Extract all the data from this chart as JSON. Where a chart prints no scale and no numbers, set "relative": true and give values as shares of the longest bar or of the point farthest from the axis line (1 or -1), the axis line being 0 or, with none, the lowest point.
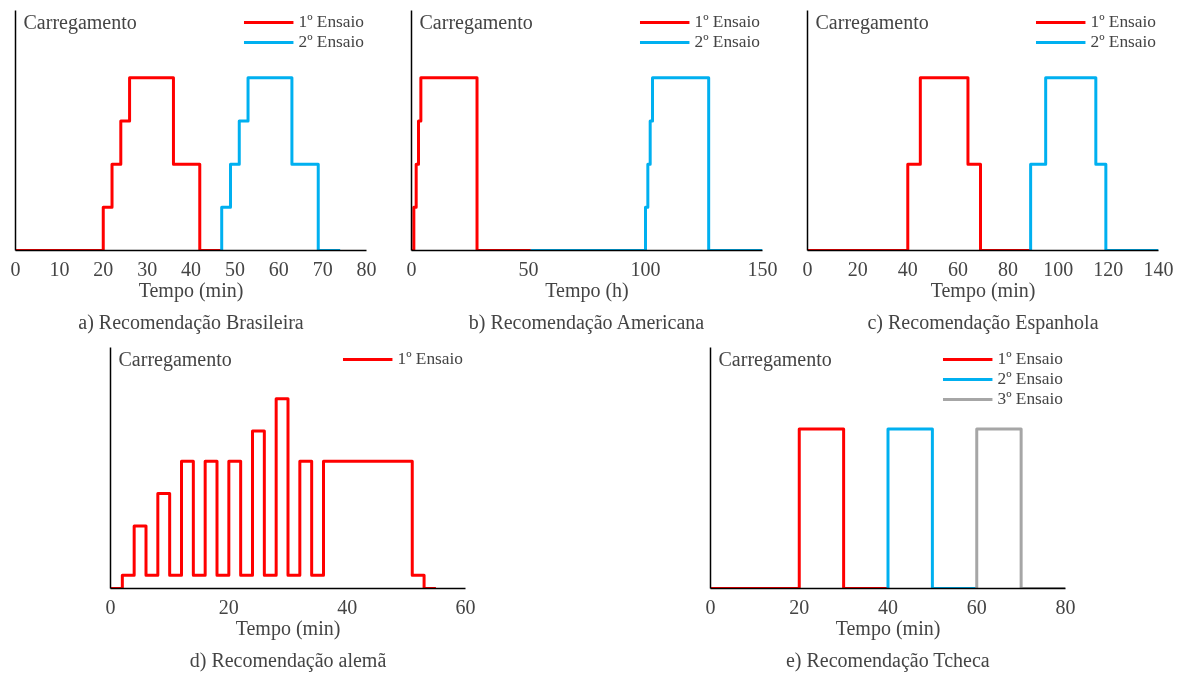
{
  "chart_data": [
    {
      "type": "step",
      "title": "a) Recomendação Brasileira",
      "xlabel": "Tempo (min)",
      "ylabel": "Carregamento",
      "relative": true,
      "tick_labels": "x",
      "legend": "top right",
      "line_style": "solid",
      "grid": false,
      "xlim": [
        0,
        80
      ],
      "xticks": [
        0,
        10,
        20,
        30,
        40,
        50,
        60,
        70,
        80
      ],
      "series": [
        {
          "name": "1º Ensaio",
          "color": "#ff0000",
          "x": [
            0,
            20,
            22,
            24,
            26,
            36,
            42,
            47
          ],
          "values": [
            0,
            0.25,
            0.5,
            0.75,
            1,
            0.5,
            0,
            0
          ]
        },
        {
          "name": "2º Ensaio",
          "color": "#00b0f0",
          "x": [
            47,
            47,
            49,
            51,
            53,
            63,
            69,
            74
          ],
          "values": [
            0,
            0.25,
            0.5,
            0.75,
            1,
            0.5,
            0,
            0
          ]
        }
      ]
    },
    {
      "type": "step",
      "title": "b) Recomendação Americana",
      "xlabel": "Tempo (h)",
      "ylabel": "Carregamento",
      "relative": true,
      "tick_labels": "x",
      "legend": "top right",
      "line_style": "solid",
      "grid": false,
      "xlim": [
        0,
        150
      ],
      "xticks": [
        0,
        50,
        100,
        150
      ],
      "series": [
        {
          "name": "1º Ensaio",
          "color": "#ff0000",
          "x": [
            0,
            1,
            2,
            3,
            4,
            28,
            51
          ],
          "values": [
            0,
            0.25,
            0.5,
            0.75,
            1,
            0,
            0
          ]
        },
        {
          "name": "2º Ensaio",
          "color": "#00b0f0",
          "x": [
            51,
            100,
            101,
            102,
            103,
            127,
            150
          ],
          "values": [
            0,
            0.25,
            0.5,
            0.75,
            1,
            0,
            0
          ]
        }
      ]
    },
    {
      "type": "step",
      "title": "c) Recomendação Espanhola",
      "xlabel": "Tempo (min)",
      "ylabel": "Carregamento",
      "relative": true,
      "tick_labels": "x",
      "legend": "top right",
      "line_style": "solid",
      "grid": false,
      "xlim": [
        0,
        140
      ],
      "xticks": [
        0,
        20,
        40,
        60,
        80,
        100,
        120,
        140
      ],
      "series": [
        {
          "name": "1º Ensaio",
          "color": "#ff0000",
          "x": [
            0,
            40,
            45,
            64,
            69,
            89
          ],
          "values": [
            0,
            0.5,
            1,
            0.5,
            0,
            0
          ]
        },
        {
          "name": "2º Ensaio",
          "color": "#00b0f0",
          "x": [
            89,
            89,
            95,
            115,
            119,
            140
          ],
          "values": [
            0,
            0.5,
            1,
            0.5,
            0,
            0
          ]
        }
      ]
    },
    {
      "type": "step",
      "title": "d) Recomendação alemã",
      "xlabel": "Tempo (min)",
      "ylabel": "Carregamento",
      "relative": true,
      "tick_labels": "x",
      "legend": "top right",
      "line_style": "solid",
      "grid": false,
      "xlim": [
        0,
        60
      ],
      "xticks": [
        0,
        20,
        40,
        60
      ],
      "series": [
        {
          "name": "1º Ensaio",
          "color": "#ff0000",
          "x": [
            0,
            2,
            4,
            6,
            8,
            10,
            12,
            14,
            16,
            18,
            20,
            22,
            24,
            26,
            28,
            30,
            32,
            34,
            36,
            51,
            53,
            55
          ],
          "values": [
            0,
            0.07,
            0.33,
            0.07,
            0.5,
            0.07,
            0.67,
            0.07,
            0.67,
            0.07,
            0.67,
            0.07,
            0.83,
            0.07,
            1,
            0.07,
            0.67,
            0.07,
            0.67,
            0.07,
            0,
            0
          ]
        }
      ]
    },
    {
      "type": "step",
      "title": "e) Recomendação Tcheca",
      "xlabel": "Tempo (min)",
      "ylabel": "Carregamento",
      "relative": true,
      "tick_labels": "x",
      "legend": "top right",
      "line_style": "solid",
      "grid": false,
      "xlim": [
        0,
        80
      ],
      "xticks": [
        0,
        20,
        40,
        60,
        80
      ],
      "series": [
        {
          "name": "1º Ensaio",
          "color": "#ff0000",
          "x": [
            0,
            20,
            30,
            40
          ],
          "values": [
            0,
            1,
            0,
            0
          ]
        },
        {
          "name": "2º Ensaio",
          "color": "#00b0f0",
          "x": [
            40,
            40,
            50,
            60
          ],
          "values": [
            0,
            1,
            0,
            0
          ]
        },
        {
          "name": "3º Ensaio",
          "color": "#a6a6a6",
          "x": [
            60,
            60,
            70,
            80
          ],
          "values": [
            0,
            1,
            0,
            0
          ]
        }
      ]
    }
  ]
}
